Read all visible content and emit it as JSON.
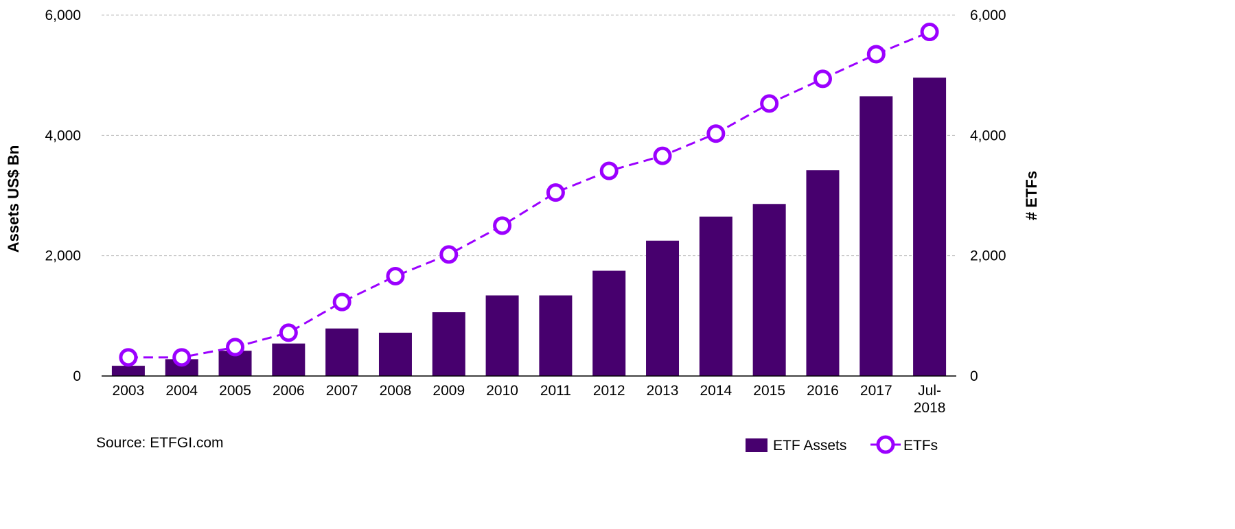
{
  "chart_data": {
    "type": "bar",
    "categories": [
      "2003",
      "2004",
      "2005",
      "2006",
      "2007",
      "2008",
      "2009",
      "2010",
      "2011",
      "2012",
      "2013",
      "2014",
      "2015",
      "2016",
      "2017",
      "Jul-2018"
    ],
    "category_lines": [
      [
        "2003"
      ],
      [
        "2004"
      ],
      [
        "2005"
      ],
      [
        "2006"
      ],
      [
        "2007"
      ],
      [
        "2008"
      ],
      [
        "2009"
      ],
      [
        "2010"
      ],
      [
        "2011"
      ],
      [
        "2012"
      ],
      [
        "2013"
      ],
      [
        "2014"
      ],
      [
        "2015"
      ],
      [
        "2016"
      ],
      [
        "2017"
      ],
      [
        "Jul-",
        "2018"
      ]
    ],
    "series": [
      {
        "name": "ETF Assets",
        "type": "bar",
        "axis": "left",
        "color": "#47006e",
        "values": [
          170,
          280,
          420,
          540,
          790,
          720,
          1060,
          1340,
          1340,
          1750,
          2250,
          2650,
          2860,
          3420,
          4650,
          4960
        ]
      },
      {
        "name": "ETFs",
        "type": "line",
        "axis": "right",
        "color": "#9b00ff",
        "marker": "open-circle",
        "line_style": "dashed",
        "values": [
          310,
          310,
          480,
          720,
          1230,
          1660,
          2020,
          2500,
          3050,
          3410,
          3660,
          4030,
          4530,
          4940,
          5350,
          5720
        ]
      }
    ],
    "ylabel": "Assets US$ Bn",
    "y2label": "# ETFs",
    "ylim": [
      0,
      6000
    ],
    "y2lim": [
      0,
      6000
    ],
    "yticks": [
      "0",
      "2,000",
      "4,000",
      "6,000"
    ],
    "y2ticks": [
      "0",
      "2,000",
      "4,000",
      "6,000"
    ],
    "ytick_values": [
      0,
      2000,
      4000,
      6000
    ],
    "grid": true,
    "legend_position": "bottom-right",
    "source": "Source: ETFGI.com"
  }
}
